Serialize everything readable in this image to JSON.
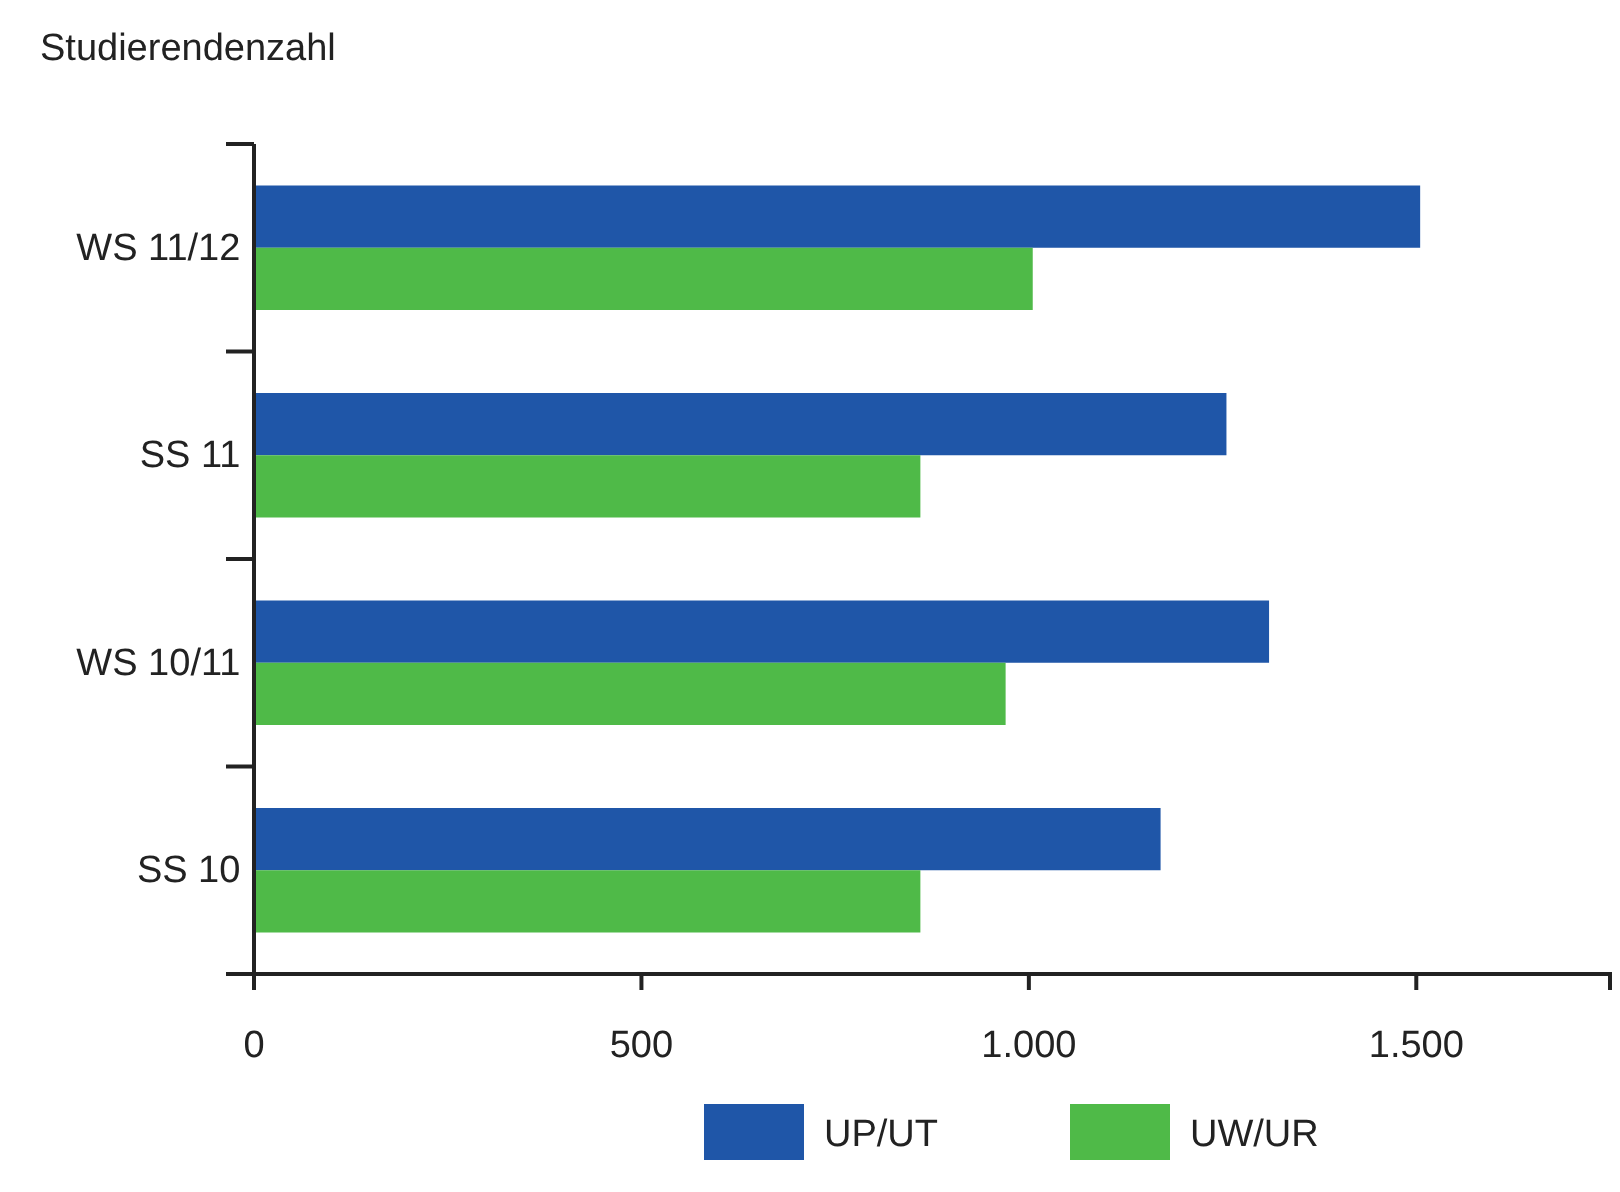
{
  "chart_data": {
    "type": "bar",
    "orientation": "horizontal",
    "ylabel": "Studierendenzahl",
    "categories": [
      "WS 11/12",
      "SS 11",
      "WS 10/11",
      "SS 10"
    ],
    "series": [
      {
        "name": "UP/UT",
        "color": "#1f56a8",
        "values": [
          1505,
          1255,
          1310,
          1170
        ]
      },
      {
        "name": "UW/UR",
        "color": "#4fba48",
        "values": [
          1005,
          860,
          970,
          860
        ]
      }
    ],
    "xlim": [
      0,
      1750
    ],
    "xticks": [
      0,
      500,
      {
        "value": 1000,
        "label": "1.000"
      },
      {
        "value": 1500,
        "label": "1.500"
      }
    ],
    "grid": false,
    "legend": "bottom"
  }
}
